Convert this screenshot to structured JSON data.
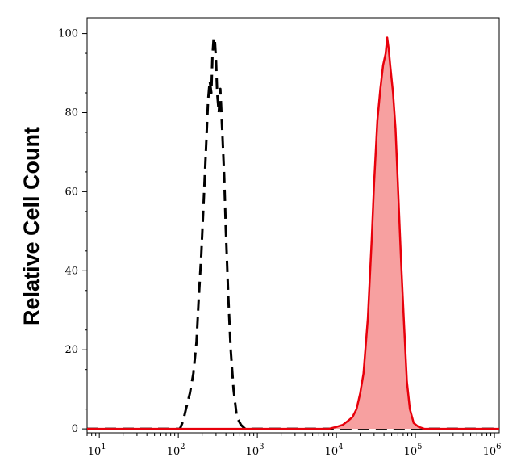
{
  "chart_data": {
    "type": "area",
    "title": "",
    "xlabel": "",
    "ylabel": "Relative Cell Count",
    "x_scale": "log",
    "xlim": [
      7,
      1150000
    ],
    "ylim": [
      -1,
      104
    ],
    "x_ticks": [
      {
        "value": 10,
        "base": "10",
        "exp": "1"
      },
      {
        "value": 100,
        "base": "10",
        "exp": "2"
      },
      {
        "value": 1000,
        "base": "10",
        "exp": "3"
      },
      {
        "value": 10000,
        "base": "10",
        "exp": "4"
      },
      {
        "value": 100000,
        "base": "10",
        "exp": "5"
      },
      {
        "value": 1000000,
        "base": "10",
        "exp": "6"
      }
    ],
    "y_ticks": [
      {
        "value": 0,
        "label": "0"
      },
      {
        "value": 20,
        "label": "20"
      },
      {
        "value": 40,
        "label": "40"
      },
      {
        "value": 60,
        "label": "60"
      },
      {
        "value": 80,
        "label": "80"
      },
      {
        "value": 100,
        "label": "100"
      }
    ],
    "grid": false,
    "legend": "none",
    "colors": {
      "control": "#000000",
      "stained_line": "#e8000b",
      "stained_fill": "#f7a0a0"
    },
    "series": [
      {
        "style": "dashed",
        "x": [
          7,
          90,
          105,
          115,
          125,
          140,
          155,
          170,
          180,
          195,
          210,
          225,
          238,
          250,
          262,
          270,
          280,
          290,
          300,
          310,
          325,
          340,
          360,
          380,
          400,
          430,
          460,
          500,
          550,
          620,
          700,
          1150000
        ],
        "y": [
          0,
          0,
          0,
          2,
          5,
          9,
          14,
          22,
          32,
          44,
          58,
          72,
          83,
          88,
          85,
          94,
          99,
          98,
          93,
          85,
          80,
          86,
          75,
          64,
          50,
          33,
          20,
          10,
          3,
          1,
          0,
          0
        ]
      },
      {
        "style": "solid-filled",
        "x": [
          7,
          8000,
          10000,
          12000,
          14000,
          16000,
          18000,
          20000,
          22000,
          25000,
          28000,
          30000,
          33000,
          36000,
          39000,
          42000,
          44000,
          46000,
          48000,
          52000,
          56000,
          60000,
          66000,
          72000,
          78000,
          85000,
          95000,
          110000,
          130000,
          1150000
        ],
        "y": [
          0,
          0,
          0.5,
          1,
          2,
          3,
          5,
          9,
          14,
          28,
          48,
          62,
          78,
          86,
          92,
          95,
          99,
          96,
          92,
          85,
          76,
          62,
          42,
          26,
          12,
          5,
          1.5,
          0.5,
          0,
          0
        ]
      }
    ]
  }
}
